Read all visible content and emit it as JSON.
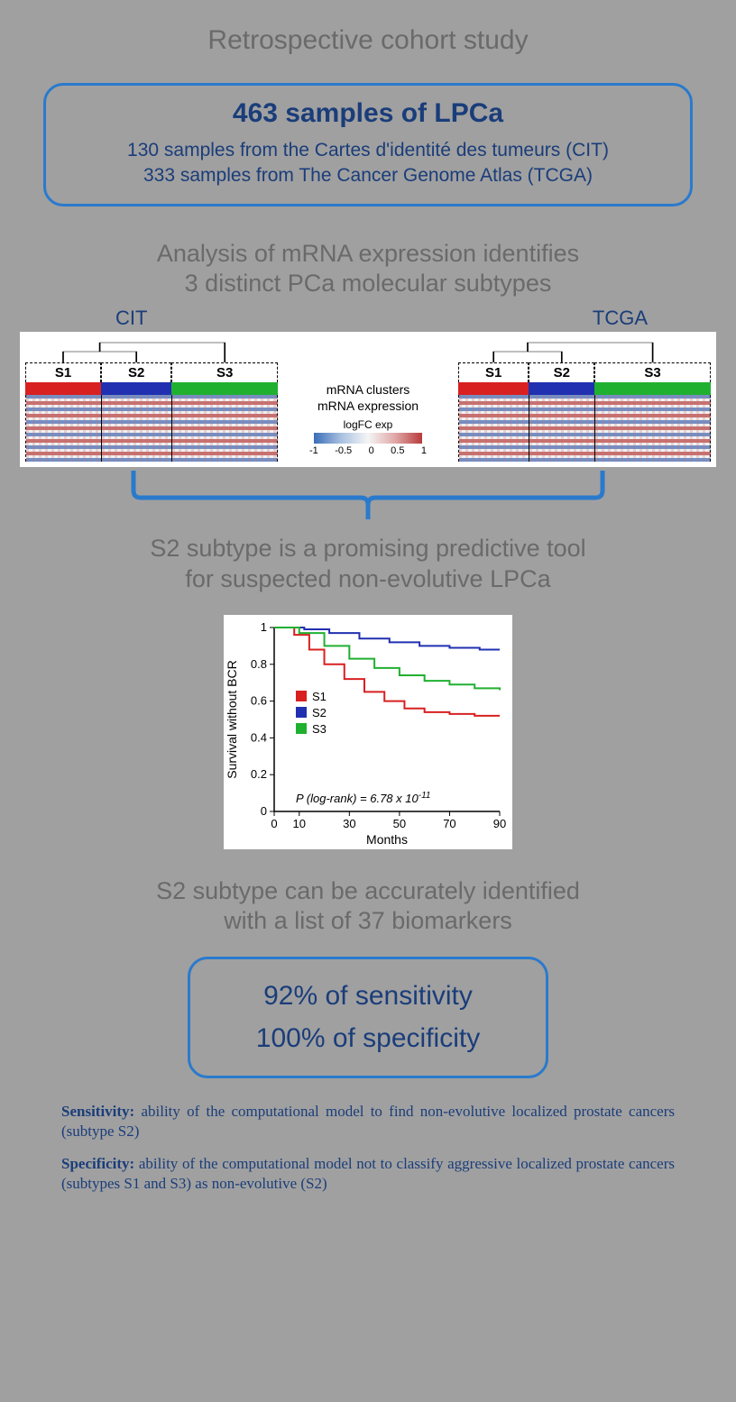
{
  "title": "Retrospective cohort study",
  "samples_box": {
    "title": "463 samples of LPCa",
    "line1": "130 samples from the Cartes d'identité des tumeurs (CIT)",
    "line2": "333 samples from The Cancer Genome Atlas (TCGA)"
  },
  "analysis_heading_l1": "Analysis of mRNA expression identifies",
  "analysis_heading_l2": "3 distinct PCa molecular subtypes",
  "heatmap": {
    "left_label": "CIT",
    "right_label": "TCGA",
    "clusters": [
      "S1",
      "S2",
      "S3"
    ],
    "cluster_colors": [
      "#d82020",
      "#2030b0",
      "#20b030"
    ],
    "left_widths": [
      0.3,
      0.28,
      0.42
    ],
    "right_widths": [
      0.28,
      0.26,
      0.46
    ],
    "center_label1": "mRNA clusters",
    "center_label2": "mRNA expression",
    "legend_title": "logFC exp",
    "legend_ticks": [
      "-1",
      "-0.5",
      "0",
      "0.5",
      "1"
    ],
    "expr_low": "#7090c8",
    "expr_mid": "#f0f0f0",
    "expr_high": "#c87070"
  },
  "s2_heading_l1": "S2 subtype is a promising predictive tool",
  "s2_heading_l2": "for suspected non-evolutive LPCa",
  "survival": {
    "ylabel": "Survival without BCR",
    "xlabel": "Months",
    "yticks": [
      "0",
      "0.2",
      "0.4",
      "0.6",
      "0.8",
      "1"
    ],
    "xticks": [
      "0",
      "10",
      "30",
      "50",
      "70",
      "90"
    ],
    "legend": [
      {
        "label": "S1",
        "color": "#d82020"
      },
      {
        "label": "S2",
        "color": "#2030b0"
      },
      {
        "label": "S3",
        "color": "#20b030"
      }
    ],
    "pval_text": "P (log-rank) = 6.78 x 10",
    "pval_exp": "-11",
    "curves": {
      "s1": [
        [
          0,
          1.0
        ],
        [
          8,
          0.96
        ],
        [
          14,
          0.88
        ],
        [
          20,
          0.8
        ],
        [
          28,
          0.72
        ],
        [
          36,
          0.65
        ],
        [
          44,
          0.6
        ],
        [
          52,
          0.56
        ],
        [
          60,
          0.54
        ],
        [
          70,
          0.53
        ],
        [
          80,
          0.52
        ],
        [
          90,
          0.52
        ]
      ],
      "s2": [
        [
          0,
          1.0
        ],
        [
          12,
          0.99
        ],
        [
          22,
          0.97
        ],
        [
          34,
          0.94
        ],
        [
          46,
          0.92
        ],
        [
          58,
          0.9
        ],
        [
          70,
          0.89
        ],
        [
          82,
          0.88
        ],
        [
          90,
          0.88
        ]
      ],
      "s3": [
        [
          0,
          1.0
        ],
        [
          10,
          0.97
        ],
        [
          20,
          0.9
        ],
        [
          30,
          0.83
        ],
        [
          40,
          0.78
        ],
        [
          50,
          0.74
        ],
        [
          60,
          0.71
        ],
        [
          70,
          0.69
        ],
        [
          80,
          0.67
        ],
        [
          90,
          0.66
        ]
      ]
    },
    "xlim": [
      0,
      90
    ],
    "ylim": [
      0,
      1
    ],
    "line_width": 2
  },
  "biomarker_heading_l1": "S2 subtype can be accurately identified",
  "biomarker_heading_l2": "with a list of 37 biomarkers",
  "metrics_box": {
    "line1": "92% of sensitivity",
    "line2": "100% of specificity"
  },
  "definitions": {
    "sens_term": "Sensitivity:",
    "sens_text": " ability of the computational model to find non-evolutive localized prostate cancers (subtype S2)",
    "spec_term": "Specificity:",
    "spec_text": " ability of the computational model not to classify aggressive localized prostate cancers (subtypes S1 and S3) as non-evolutive (S2)"
  },
  "colors": {
    "border": "#2a7acc",
    "text_dark": "#1a3d7a",
    "text_grey": "#6a6a6a",
    "bg": "#a0a0a0"
  }
}
